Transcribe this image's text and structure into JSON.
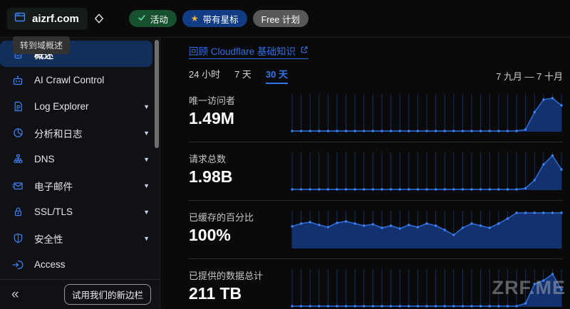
{
  "topbar": {
    "site_name": "aizrf.com",
    "selector_icon": "diamond-chevron-icon",
    "badges": [
      {
        "label": "活动",
        "icon": "check-icon",
        "bg": "#17502f",
        "icon_color": "#62d992"
      },
      {
        "label": "带有星标",
        "icon": "star-icon",
        "bg": "#123d85",
        "icon_color": "#f4b63f"
      },
      {
        "label": "Free 计划",
        "icon": "none",
        "bg": "#585858",
        "icon_color": ""
      }
    ]
  },
  "sidebar": {
    "tooltip": "转到域概述",
    "items": [
      {
        "label": "概述",
        "icon": "document-icon",
        "active": true,
        "chevron": false
      },
      {
        "label": "AI Crawl Control",
        "icon": "robot-icon",
        "active": false,
        "chevron": false
      },
      {
        "label": "Log Explorer",
        "icon": "log-file-icon",
        "active": false,
        "chevron": true
      },
      {
        "label": "分析和日志",
        "icon": "pie-chart-icon",
        "active": false,
        "chevron": true
      },
      {
        "label": "DNS",
        "icon": "network-tree-icon",
        "active": false,
        "chevron": true
      },
      {
        "label": "电子邮件",
        "icon": "email-icon",
        "active": false,
        "chevron": true
      },
      {
        "label": "SSL/TLS",
        "icon": "lock-icon",
        "active": false,
        "chevron": true
      },
      {
        "label": "安全性",
        "icon": "shield-icon",
        "active": false,
        "chevron": true
      },
      {
        "label": "Access",
        "icon": "login-arrow-icon",
        "active": false,
        "chevron": false
      }
    ],
    "footer": {
      "collapse_glyph": "«",
      "new_sidebar_button": "试用我们的新边栏"
    }
  },
  "main": {
    "review_link": "回顾 Cloudflare 基础知识",
    "time_tabs": [
      {
        "label": "24 小时",
        "active": false
      },
      {
        "label": "7 天",
        "active": false
      },
      {
        "label": "30 天",
        "active": true
      }
    ],
    "date_range": "7 九月 — 7 十月",
    "watermark": "ZRF.ME"
  },
  "colors": {
    "accent_blue": "#3b82f6",
    "link_blue": "#2f6fe4",
    "active_item_bg": "#112f58",
    "chart_grid": "#152f5c",
    "chart_fill": "#12316e",
    "chart_line": "#2e6bd0",
    "chart_marker": "#3b82f6"
  },
  "chart_data": [
    {
      "type": "area",
      "metric_label": "唯一访问者",
      "metric_value": "1.49M",
      "x_range": "30 天 (7 九月 — 7 十月), 每日一个点",
      "ylim": [
        0,
        100
      ],
      "values_scale": "percent of chart max (relative daily uniques)",
      "values": [
        2,
        2,
        2,
        2,
        2,
        2,
        2,
        2,
        2,
        2,
        2,
        2,
        2,
        2,
        2,
        2,
        2,
        2,
        2,
        2,
        2,
        2,
        2,
        2,
        2,
        2,
        6,
        55,
        90,
        94,
        74
      ]
    },
    {
      "type": "area",
      "metric_label": "请求总数",
      "metric_value": "1.98B",
      "x_range": "30 天 (7 九月 — 7 十月), 每日一个点",
      "ylim": [
        0,
        100
      ],
      "values_scale": "percent of chart max (relative daily requests)",
      "values": [
        2,
        2,
        2,
        2,
        2,
        2,
        2,
        2,
        2,
        2,
        2,
        2,
        2,
        2,
        2,
        2,
        2,
        2,
        2,
        2,
        2,
        2,
        2,
        2,
        2,
        2,
        5,
        28,
        72,
        97,
        58
      ]
    },
    {
      "type": "area",
      "metric_label": "已缓存的百分比",
      "metric_value": "100%",
      "x_range": "30 天 (7 九月 — 7 十月), 每日一个点",
      "ylim": [
        0,
        100
      ],
      "values_scale": "percent cached per day (approx.)",
      "values": [
        62,
        70,
        74,
        66,
        60,
        72,
        76,
        70,
        64,
        68,
        58,
        64,
        56,
        66,
        60,
        70,
        64,
        52,
        38,
        58,
        70,
        64,
        58,
        70,
        84,
        100,
        100,
        100,
        100,
        100,
        100
      ]
    },
    {
      "type": "area",
      "metric_label": "已提供的数据总计",
      "metric_value": "211 TB",
      "x_range": "30 天 (7 九月 — 7 十月), 每日一个点",
      "ylim": [
        0,
        100
      ],
      "values_scale": "percent of chart max (relative daily data served)",
      "values": [
        2,
        2,
        2,
        2,
        2,
        2,
        2,
        2,
        2,
        2,
        2,
        2,
        2,
        2,
        2,
        2,
        2,
        2,
        2,
        2,
        2,
        2,
        2,
        2,
        2,
        2,
        10,
        64,
        74,
        92,
        48
      ]
    }
  ]
}
